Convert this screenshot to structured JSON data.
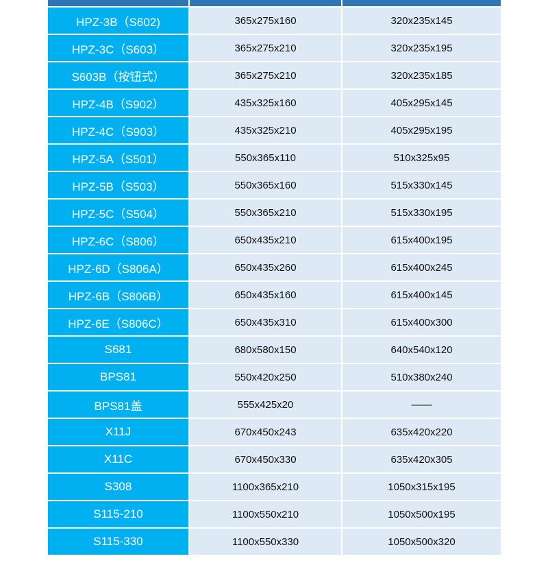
{
  "rows": [
    [
      "HPZ-3B（S602)",
      "365x275x160",
      "320x235x145"
    ],
    [
      "HPZ-3C（S603）",
      "365x275x210",
      "320x235x195"
    ],
    [
      "S603B（按钮式）",
      "365x275x210",
      "320x235x185"
    ],
    [
      "HPZ-4B（S902）",
      "435x325x160",
      "405x295x145"
    ],
    [
      "HPZ-4C（S903）",
      "435x325x210",
      "405x295x195"
    ],
    [
      "HPZ-5A（S501）",
      "550x365x110",
      "510x325x95"
    ],
    [
      "HPZ-5B（S503）",
      "550x365x160",
      "515x330x145"
    ],
    [
      "HPZ-5C（S504）",
      "550x365x210",
      "515x330x195"
    ],
    [
      "HPZ-6C（S806）",
      "650x435x210",
      "615x400x195"
    ],
    [
      "HPZ-6D（S806A）",
      "650x435x260",
      "615x400x245"
    ],
    [
      "HPZ-6B（S806B）",
      "650x435x160",
      "615x400x145"
    ],
    [
      "HPZ-6E（S806C）",
      "650x435x310",
      "615x400x300"
    ],
    [
      "S681",
      "680x580x150",
      "640x540x120"
    ],
    [
      "BPS81",
      "550x420x250",
      "510x380x240"
    ],
    [
      "BPS81盖",
      "555x425x20",
      "——"
    ],
    [
      "X11J",
      "670x450x243",
      "635x420x220"
    ],
    [
      "X11C",
      "670x450x330",
      "635x420x305"
    ],
    [
      "S308",
      "1100x365x210",
      "1050x315x195"
    ],
    [
      "S115-210",
      "1100x550x210",
      "1050x500x195"
    ],
    [
      "S115-330",
      "1100x550x330",
      "1050x500x320"
    ]
  ]
}
